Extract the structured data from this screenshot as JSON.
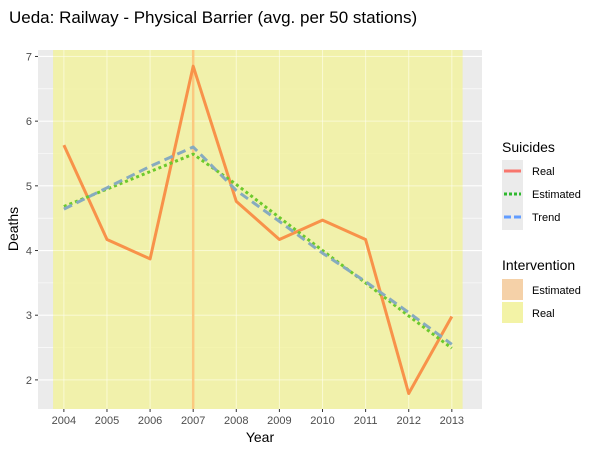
{
  "chart_data": {
    "type": "line",
    "title": "Ueda: Railway - Physical Barrier (avg. per 50 stations)",
    "xlabel": "Year",
    "ylabel": "Deaths",
    "x": [
      2004,
      2005,
      2006,
      2007,
      2008,
      2009,
      2010,
      2011,
      2012,
      2013
    ],
    "xlim": [
      2003.4,
      2013.7
    ],
    "ylim": [
      1.55,
      7.1
    ],
    "yticks": [
      2,
      3,
      4,
      5,
      6,
      7
    ],
    "grid": true,
    "legend_position": "right",
    "intervention_year": 2007,
    "shaded_range": [
      2003.75,
      2013.25
    ],
    "series": [
      {
        "name": "Real",
        "color": "#f8924a",
        "dash": "solid",
        "x": [
          2004,
          2005,
          2006,
          2007,
          2008,
          2009,
          2010,
          2011,
          2012,
          2013
        ],
        "values": [
          5.63,
          4.17,
          3.87,
          6.85,
          4.76,
          4.17,
          4.47,
          4.17,
          1.79,
          2.98
        ]
      },
      {
        "name": "Estimated",
        "color": "#6dc92c",
        "dash": "dotted",
        "x": [
          2004,
          2005,
          2006,
          2007,
          2008,
          2009,
          2010,
          2011,
          2012,
          2013
        ],
        "values": [
          4.68,
          4.95,
          5.22,
          5.49,
          5.02,
          4.51,
          4.0,
          3.5,
          2.99,
          2.49
        ]
      },
      {
        "name": "Trend",
        "color": "#87abbf",
        "dash": "dashed",
        "x": [
          2004,
          2005,
          2006,
          2007,
          2008,
          2009,
          2010,
          2011,
          2012,
          2013
        ],
        "values": [
          4.64,
          4.97,
          5.3,
          5.6,
          4.93,
          4.45,
          3.96,
          3.52,
          3.04,
          2.55
        ]
      }
    ],
    "legend": {
      "suicides": {
        "title": "Suicides",
        "items": [
          {
            "label": "Real",
            "color": "#f8766d",
            "dash": "solid"
          },
          {
            "label": "Estimated",
            "color": "#2fb82f",
            "dash": "dotted"
          },
          {
            "label": "Trend",
            "color": "#619cff",
            "dash": "dashed"
          }
        ]
      },
      "intervention": {
        "title": "Intervention",
        "items": [
          {
            "label": "Estimated",
            "color": "#f5d1a8"
          },
          {
            "label": "Real",
            "color": "#f3f3a6"
          }
        ]
      }
    },
    "colors": {
      "panel_bg": "#ebebeb",
      "grid": "#ffffff",
      "shade": "#f2f2a0",
      "intervention_line": "#fbc97f"
    }
  }
}
